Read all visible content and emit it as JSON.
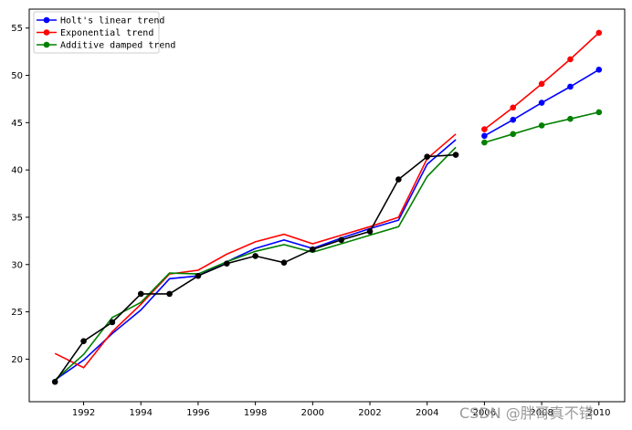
{
  "chart_data": {
    "type": "line",
    "title": "",
    "xlabel": "",
    "ylabel": "",
    "xlim": [
      1990.1,
      2010.9
    ],
    "ylim": [
      15.5,
      57.0
    ],
    "x_ticks": [
      1992,
      1994,
      1996,
      1998,
      2000,
      2002,
      2004,
      2006,
      2008,
      2010
    ],
    "y_ticks": [
      20,
      25,
      30,
      35,
      40,
      45,
      50,
      55
    ],
    "grid": false,
    "legend_position": "top-left",
    "observed": {
      "color": "#000000",
      "x": [
        1991,
        1992,
        1993,
        1994,
        1995,
        1996,
        1997,
        1998,
        1999,
        2000,
        2001,
        2002,
        2003,
        2004,
        2005
      ],
      "y": [
        17.6,
        21.9,
        23.9,
        26.9,
        26.9,
        28.8,
        30.1,
        30.9,
        30.2,
        31.6,
        32.6,
        33.5,
        39.0,
        41.4,
        41.6
      ]
    },
    "series": [
      {
        "name": "Holt's linear trend",
        "color": "#0000ff",
        "fitted_x": [
          1991,
          1992,
          1993,
          1994,
          1995,
          1996,
          1997,
          1998,
          1999,
          2000,
          2001,
          2002,
          2003,
          2004,
          2005
        ],
        "fitted_y": [
          17.8,
          19.9,
          22.7,
          25.2,
          28.5,
          28.8,
          30.3,
          31.7,
          32.6,
          31.7,
          32.8,
          33.8,
          34.7,
          40.6,
          43.2
        ],
        "forecast_x": [
          2006,
          2007,
          2008,
          2009,
          2010
        ],
        "forecast_y": [
          43.6,
          45.3,
          47.1,
          48.8,
          50.6
        ]
      },
      {
        "name": "Exponential trend",
        "color": "#ff0000",
        "fitted_x": [
          1991,
          1992,
          1993,
          1994,
          1995,
          1996,
          1997,
          1998,
          1999,
          2000,
          2001,
          2002,
          2003,
          2004,
          2005
        ],
        "fitted_y": [
          20.6,
          19.1,
          22.9,
          25.8,
          29.0,
          29.4,
          31.1,
          32.4,
          33.2,
          32.2,
          33.1,
          34.0,
          35.0,
          41.2,
          43.8
        ],
        "forecast_x": [
          2006,
          2007,
          2008,
          2009,
          2010
        ],
        "forecast_y": [
          44.3,
          46.6,
          49.1,
          51.7,
          54.5
        ]
      },
      {
        "name": "Additive damped trend",
        "color": "#008000",
        "fitted_x": [
          1991,
          1992,
          1993,
          1994,
          1995,
          1996,
          1997,
          1998,
          1999,
          2000,
          2001,
          2002,
          2003,
          2004,
          2005
        ],
        "fitted_y": [
          17.8,
          20.5,
          24.4,
          26.0,
          29.1,
          29.0,
          30.3,
          31.4,
          32.1,
          31.3,
          32.2,
          33.1,
          34.0,
          39.3,
          42.4
        ],
        "forecast_x": [
          2006,
          2007,
          2008,
          2009,
          2010
        ],
        "forecast_y": [
          42.9,
          43.8,
          44.7,
          45.4,
          46.1
        ]
      }
    ]
  },
  "watermark": "CSDN @胖哥真不错"
}
